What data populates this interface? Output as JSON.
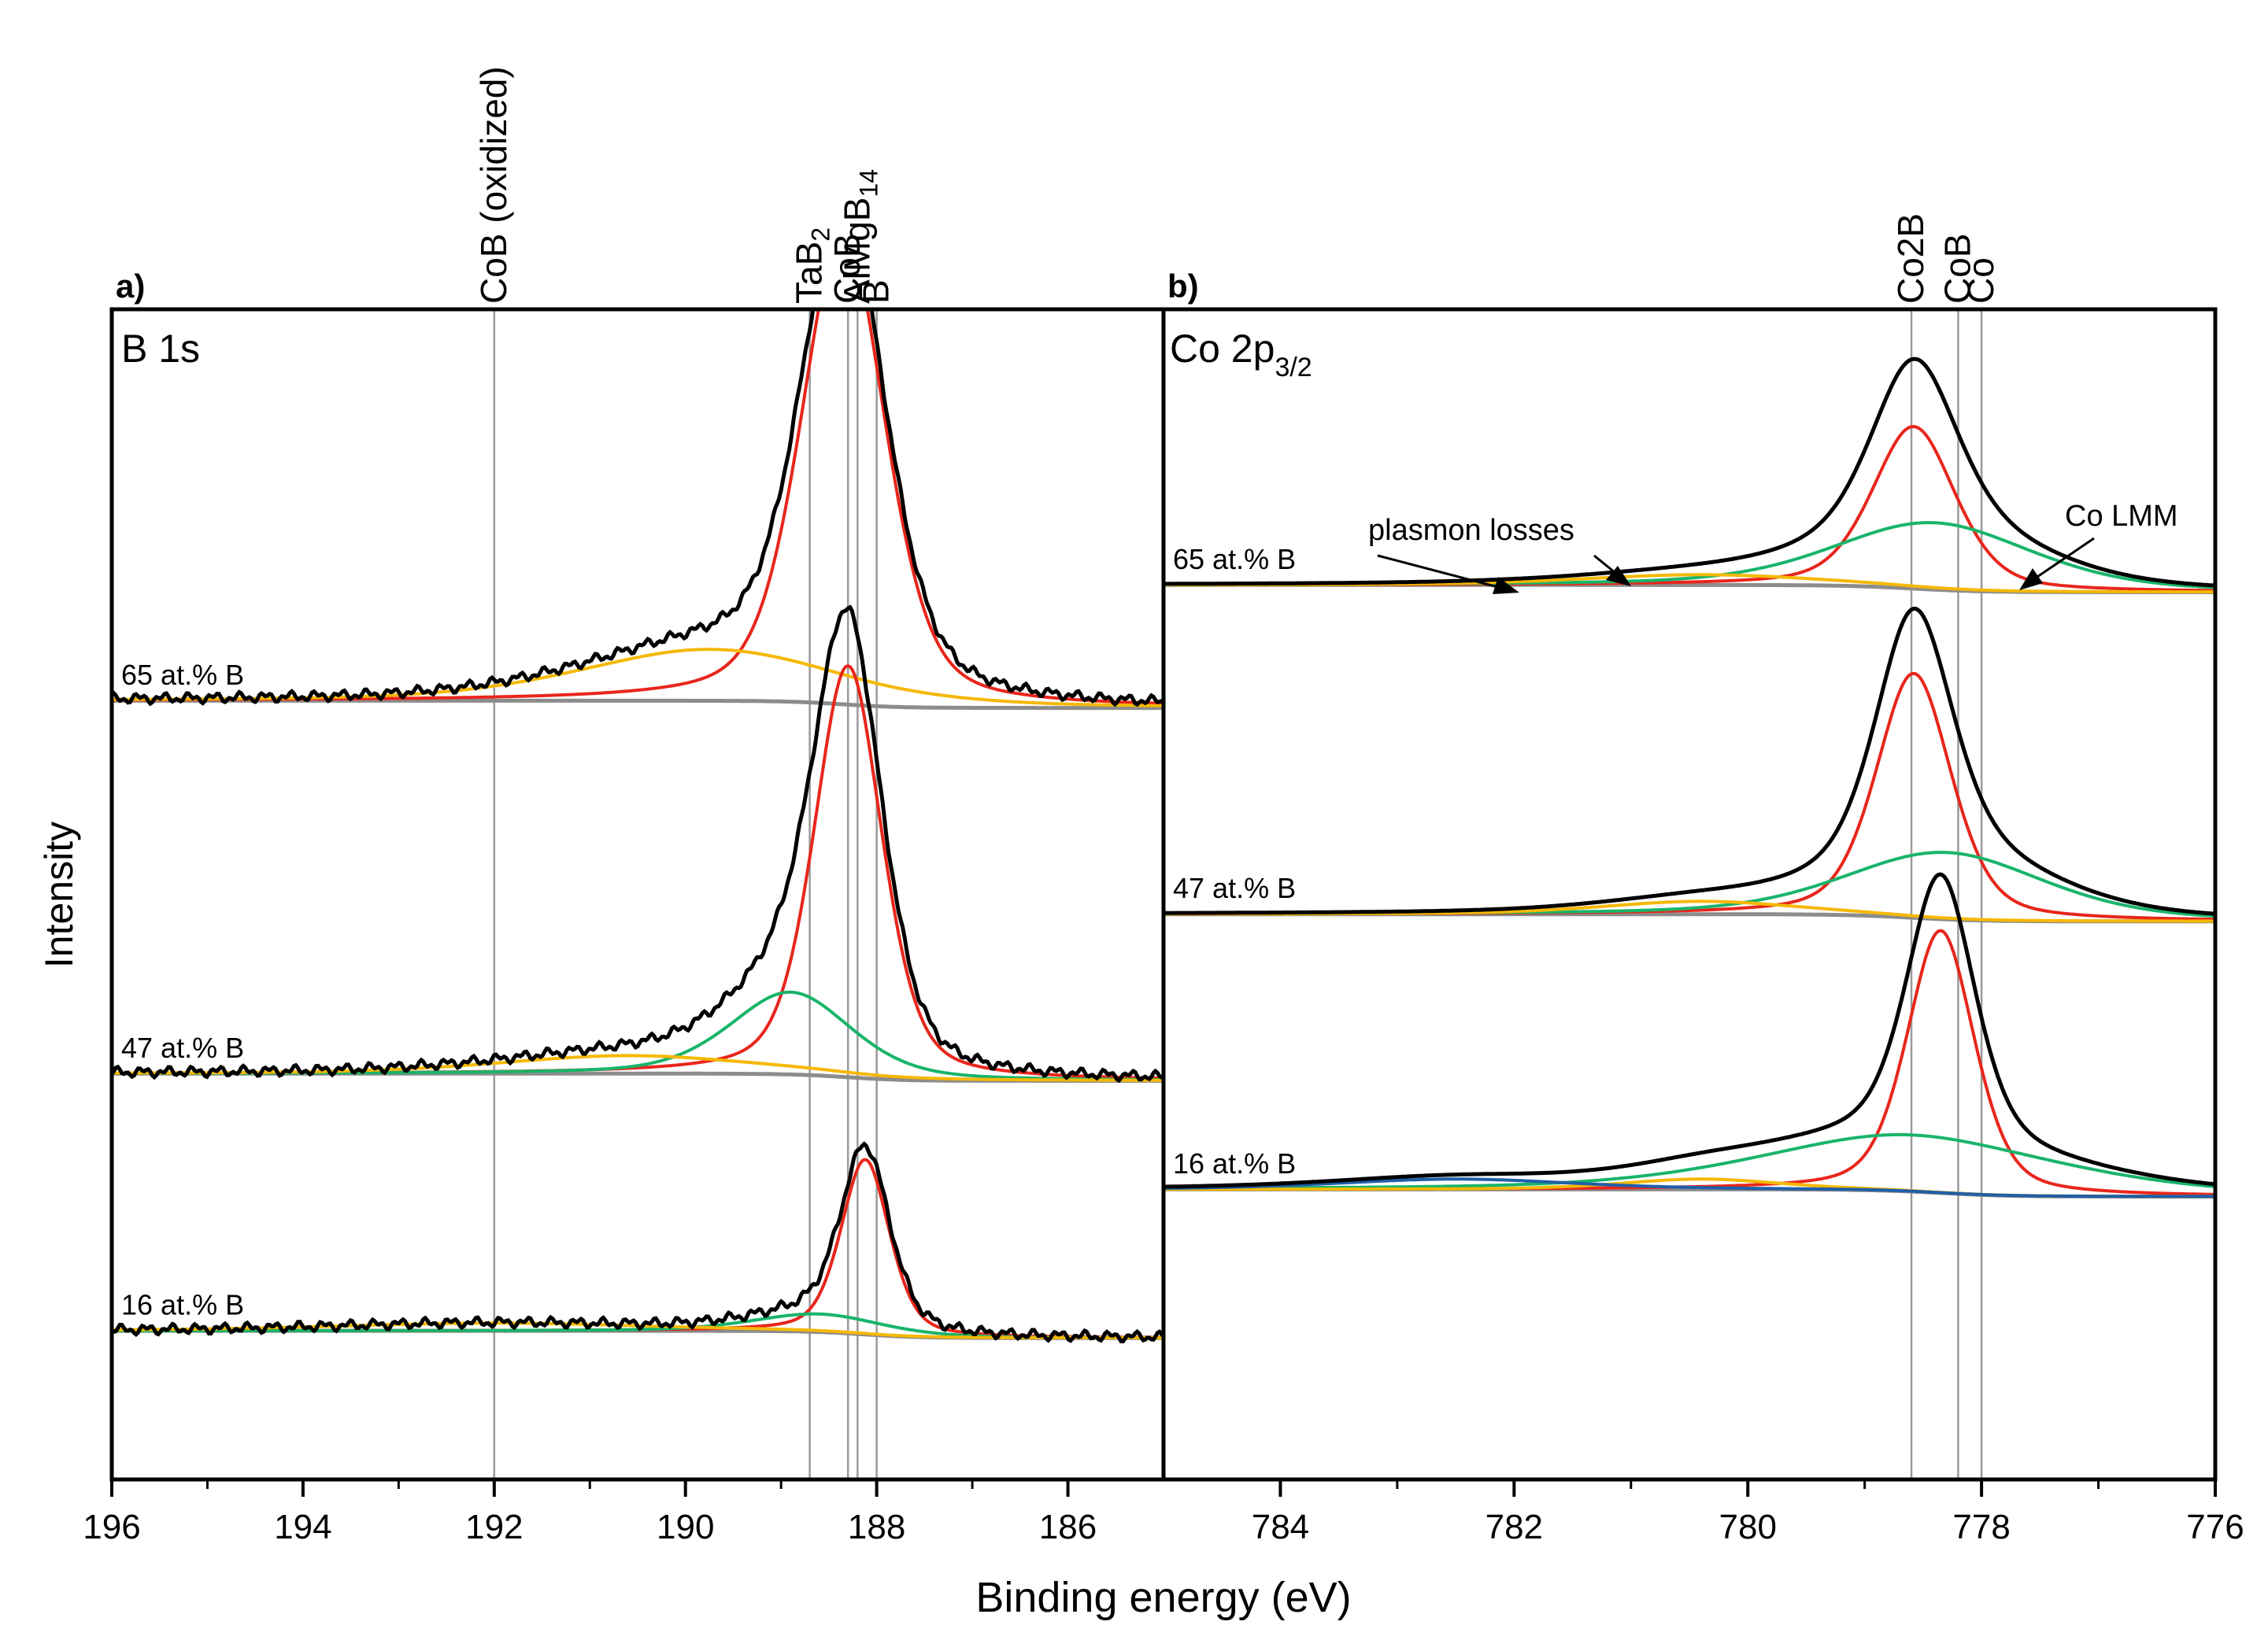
{
  "figure": {
    "ylabel": "Intensity",
    "xlabel": "Binding energy (eV)"
  },
  "colors": {
    "measured": "#000000",
    "component_main": "#e8261c",
    "component_oxidized": "#f5b800",
    "component_green": "#19b46a",
    "component_blue": "#1f5fa8",
    "background": "#8c8c8c",
    "reference_line": "#9a9a9a"
  },
  "chart_data": [
    {
      "panel": "a)",
      "title": "B 1s",
      "type": "line",
      "xlim": [
        196,
        185
      ],
      "xticks": [
        196,
        194,
        192,
        190,
        188,
        186
      ],
      "ylim": [
        -0.55,
        4.0
      ],
      "reference_lines": [
        {
          "label": "CoB (oxidized)",
          "x": 192.0
        },
        {
          "label": "TaB2",
          "x": 188.7
        },
        {
          "label": "CoB",
          "x": 188.3
        },
        {
          "label": "AlMgB14",
          "x": 188.2
        },
        {
          "label": "B",
          "x": 188.0
        }
      ],
      "spectra": [
        {
          "name": "65 at.% B",
          "offset": 2.45,
          "components": [
            {
              "type": "main",
              "center": 188.35,
              "height": 1.85,
              "width": 0.52
            },
            {
              "type": "oxidized",
              "center": 189.75,
              "height": 0.2,
              "width": 1.6
            }
          ]
        },
        {
          "name": "47 at.% B",
          "offset": 1.0,
          "components": [
            {
              "type": "main",
              "center": 188.3,
              "height": 1.6,
              "width": 0.42
            },
            {
              "type": "green",
              "center": 188.9,
              "height": 0.32,
              "width": 0.75
            },
            {
              "type": "oxidized",
              "center": 190.6,
              "height": 0.07,
              "width": 1.6
            }
          ]
        },
        {
          "name": "16 at.% B",
          "offset": 0.0,
          "components": [
            {
              "type": "main",
              "center": 188.12,
              "height": 0.68,
              "width": 0.3
            },
            {
              "type": "green",
              "center": 188.6,
              "height": 0.07,
              "width": 0.8
            },
            {
              "type": "oxidized",
              "center": 192.0,
              "height": 0.03,
              "width": 2.0
            }
          ]
        }
      ]
    },
    {
      "panel": "b)",
      "title_main": "Co 2p",
      "title_sub": "3/2",
      "type": "line",
      "xlim": [
        785,
        776
      ],
      "xticks": [
        784,
        782,
        780,
        778,
        776
      ],
      "ylim": [
        -0.55,
        4.0
      ],
      "reference_lines": [
        {
          "label": "Co2B",
          "x": 778.6
        },
        {
          "label": "CoB",
          "x": 778.2
        },
        {
          "label": "Co",
          "x": 778.0
        }
      ],
      "annotations": [
        {
          "text": "plasmon losses"
        },
        {
          "text": "Co LMM"
        }
      ],
      "spectra": [
        {
          "name": "65 at.% B",
          "offset": 2.9,
          "components": [
            {
              "type": "main",
              "center": 778.58,
              "height": 0.63,
              "width": 0.42
            },
            {
              "type": "green",
              "center": 778.4,
              "height": 0.26,
              "width": 1.0
            },
            {
              "type": "oxidized",
              "center": 780.4,
              "height": 0.04,
              "width": 1.2
            }
          ]
        },
        {
          "name": "47 at.% B",
          "offset": 1.62,
          "components": [
            {
              "type": "main",
              "center": 778.58,
              "height": 0.95,
              "width": 0.38
            },
            {
              "type": "green",
              "center": 778.3,
              "height": 0.26,
              "width": 1.0
            },
            {
              "type": "oxidized",
              "center": 780.4,
              "height": 0.05,
              "width": 1.0
            }
          ]
        },
        {
          "name": "16 at.% B",
          "offset": 0.55,
          "components": [
            {
              "type": "main",
              "center": 778.35,
              "height": 1.02,
              "width": 0.34
            },
            {
              "type": "green",
              "center": 778.6,
              "height": 0.22,
              "width": 1.5
            },
            {
              "type": "oxidized",
              "center": 780.4,
              "height": 0.04,
              "width": 0.8
            },
            {
              "type": "blue",
              "center": 782.5,
              "height": 0.04,
              "width": 1.2
            }
          ]
        }
      ]
    }
  ]
}
